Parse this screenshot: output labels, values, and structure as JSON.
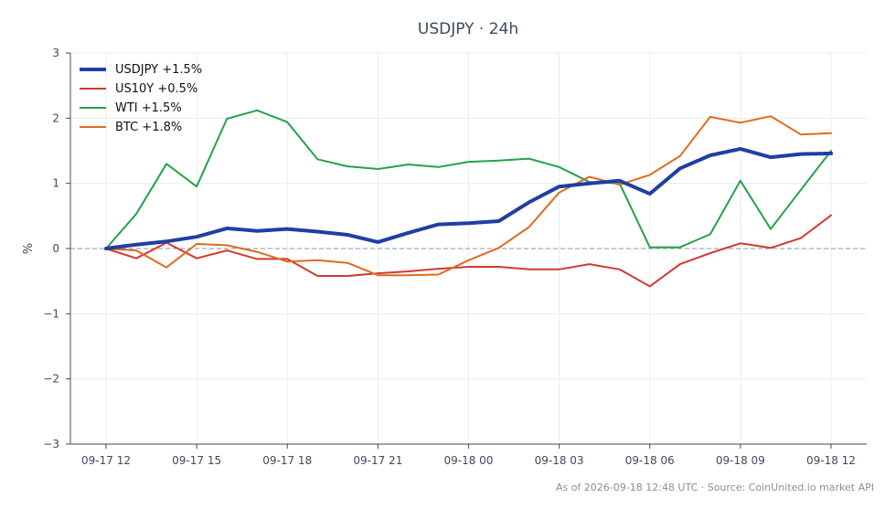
{
  "chart_data": {
    "type": "line",
    "title": "USDJPY · 24h",
    "ylabel": "%",
    "ylim": [
      -3,
      3
    ],
    "yticks": [
      3,
      2,
      1,
      0,
      -1,
      -2,
      -3
    ],
    "ytick_labels": [
      "3",
      "2",
      "1",
      "0",
      "−1",
      "−2",
      "−3"
    ],
    "x_ticks": [
      "09-17 12",
      "09-17 15",
      "09-17 18",
      "09-17 21",
      "09-18 00",
      "09-18 03",
      "09-18 06",
      "09-18 09",
      "09-18 12"
    ],
    "x_tick_index": [
      0,
      3,
      6,
      9,
      12,
      15,
      18,
      21,
      24
    ],
    "x": [
      "09-17 12",
      "09-17 13",
      "09-17 14",
      "09-17 15",
      "09-17 16",
      "09-17 17",
      "09-17 18",
      "09-17 19",
      "09-17 20",
      "09-17 21",
      "09-17 22",
      "09-17 23",
      "09-18 00",
      "09-18 01",
      "09-18 02",
      "09-18 03",
      "09-18 04",
      "09-18 05",
      "09-18 06",
      "09-18 07",
      "09-18 08",
      "09-18 09",
      "09-18 10",
      "09-18 11",
      "09-18 12"
    ],
    "reference_line": 0,
    "grid": true,
    "legend_placement": "top-left",
    "series": [
      {
        "name": "USDJPY +1.5%",
        "color": "#1f3fa3",
        "values": [
          0.0,
          0.06,
          0.11,
          0.18,
          0.31,
          0.27,
          0.3,
          0.26,
          0.21,
          0.1,
          0.24,
          0.37,
          0.39,
          0.42,
          0.71,
          0.95,
          1.0,
          1.04,
          0.84,
          1.23,
          1.43,
          1.53,
          1.4,
          1.45,
          1.46
        ]
      },
      {
        "name": "US10Y +0.5%",
        "color": "#d03a2f",
        "values": [
          0.0,
          -0.15,
          0.09,
          -0.15,
          -0.03,
          -0.16,
          -0.16,
          -0.42,
          -0.42,
          -0.38,
          -0.35,
          -0.31,
          -0.28,
          -0.28,
          -0.32,
          -0.32,
          -0.24,
          -0.32,
          -0.58,
          -0.24,
          -0.07,
          0.08,
          0.01,
          0.16,
          0.51
        ]
      },
      {
        "name": "WTI +1.5%",
        "color": "#23a34a",
        "values": [
          0.0,
          0.53,
          1.3,
          0.95,
          1.99,
          2.12,
          1.94,
          1.37,
          1.26,
          1.22,
          1.29,
          1.25,
          1.33,
          1.35,
          1.38,
          1.25,
          1.02,
          1.0,
          0.02,
          0.02,
          0.22,
          1.04,
          0.3,
          0.9,
          1.5
        ]
      },
      {
        "name": "BTC +1.8%",
        "color": "#e06a1e",
        "values": [
          0.0,
          -0.03,
          -0.29,
          0.07,
          0.05,
          -0.05,
          -0.2,
          -0.18,
          -0.22,
          -0.41,
          -0.41,
          -0.4,
          -0.18,
          0.01,
          0.33,
          0.86,
          1.1,
          0.98,
          1.13,
          1.42,
          2.02,
          1.93,
          2.03,
          1.75,
          1.77
        ]
      }
    ],
    "footer": "As of 2026-09-18 12:48 UTC · Source: CoinUnited.io market API"
  }
}
